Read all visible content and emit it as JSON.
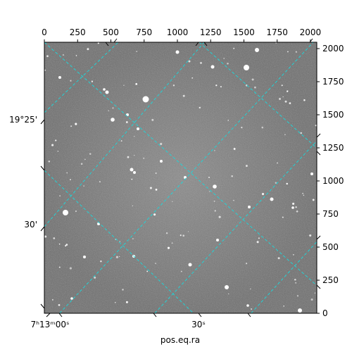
{
  "figure": {
    "xlabel": "pos.eq.ra",
    "grid_color": "#22d3d6",
    "background_color": "#7a7a7a",
    "top_axis": {
      "ticks": [
        "0",
        "250",
        "500",
        "750",
        "1000",
        "1250",
        "1500",
        "1750",
        "2000"
      ],
      "range": [
        0,
        2048
      ]
    },
    "right_axis": {
      "ticks": [
        "0",
        "250",
        "500",
        "750",
        "1000",
        "1250",
        "1500",
        "1750",
        "2000"
      ],
      "range": [
        0,
        2048
      ]
    },
    "left_dec_labels": [
      "19°25'",
      "30'"
    ],
    "bottom_ra_labels": [
      "7ʰ13ᵐ00ˢ",
      "30ˢ"
    ]
  }
}
